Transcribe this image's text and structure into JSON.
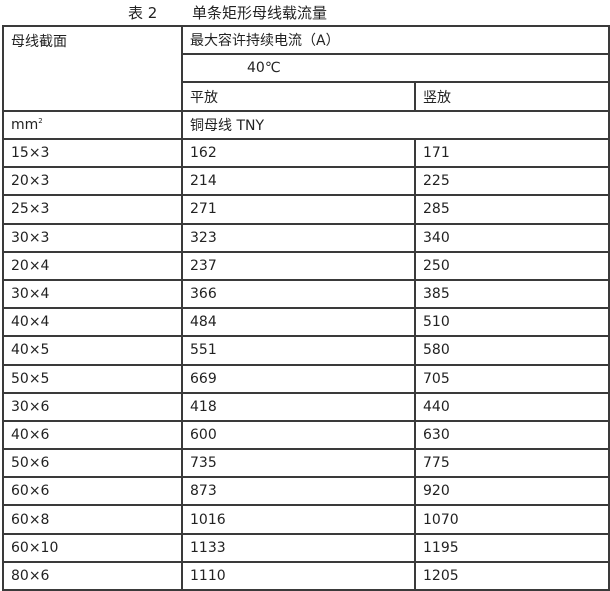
{
  "title": {
    "label": "表 2",
    "text": "单条矩形母线载流量"
  },
  "header": {
    "section": "母线截面",
    "current": "最大容许持续电流（A）",
    "temperature": "40℃",
    "flat": "平放",
    "vertical": "竖放",
    "unit": "mm",
    "unit_sup": "2",
    "material": "铜母线 TNY"
  },
  "rows": [
    {
      "size": "15×3",
      "flat": "162",
      "vertical": "171"
    },
    {
      "size": "20×3",
      "flat": "214",
      "vertical": "225"
    },
    {
      "size": "25×3",
      "flat": "271",
      "vertical": "285"
    },
    {
      "size": "30×3",
      "flat": "323",
      "vertical": "340"
    },
    {
      "size": "20×4",
      "flat": "237",
      "vertical": "250"
    },
    {
      "size": "30×4",
      "flat": "366",
      "vertical": "385"
    },
    {
      "size": "40×4",
      "flat": "484",
      "vertical": "510"
    },
    {
      "size": "40×5",
      "flat": "551",
      "vertical": "580"
    },
    {
      "size": "50×5",
      "flat": "669",
      "vertical": "705"
    },
    {
      "size": "30×6",
      "flat": "418",
      "vertical": "440"
    },
    {
      "size": "40×6",
      "flat": "600",
      "vertical": "630"
    },
    {
      "size": "50×6",
      "flat": "735",
      "vertical": "775"
    },
    {
      "size": "60×6",
      "flat": "873",
      "vertical": "920"
    },
    {
      "size": "60×8",
      "flat": "1016",
      "vertical": "1070"
    },
    {
      "size": "60×10",
      "flat": "1133",
      "vertical": "1195"
    },
    {
      "size": "80×6",
      "flat": "1110",
      "vertical": "1205"
    }
  ]
}
